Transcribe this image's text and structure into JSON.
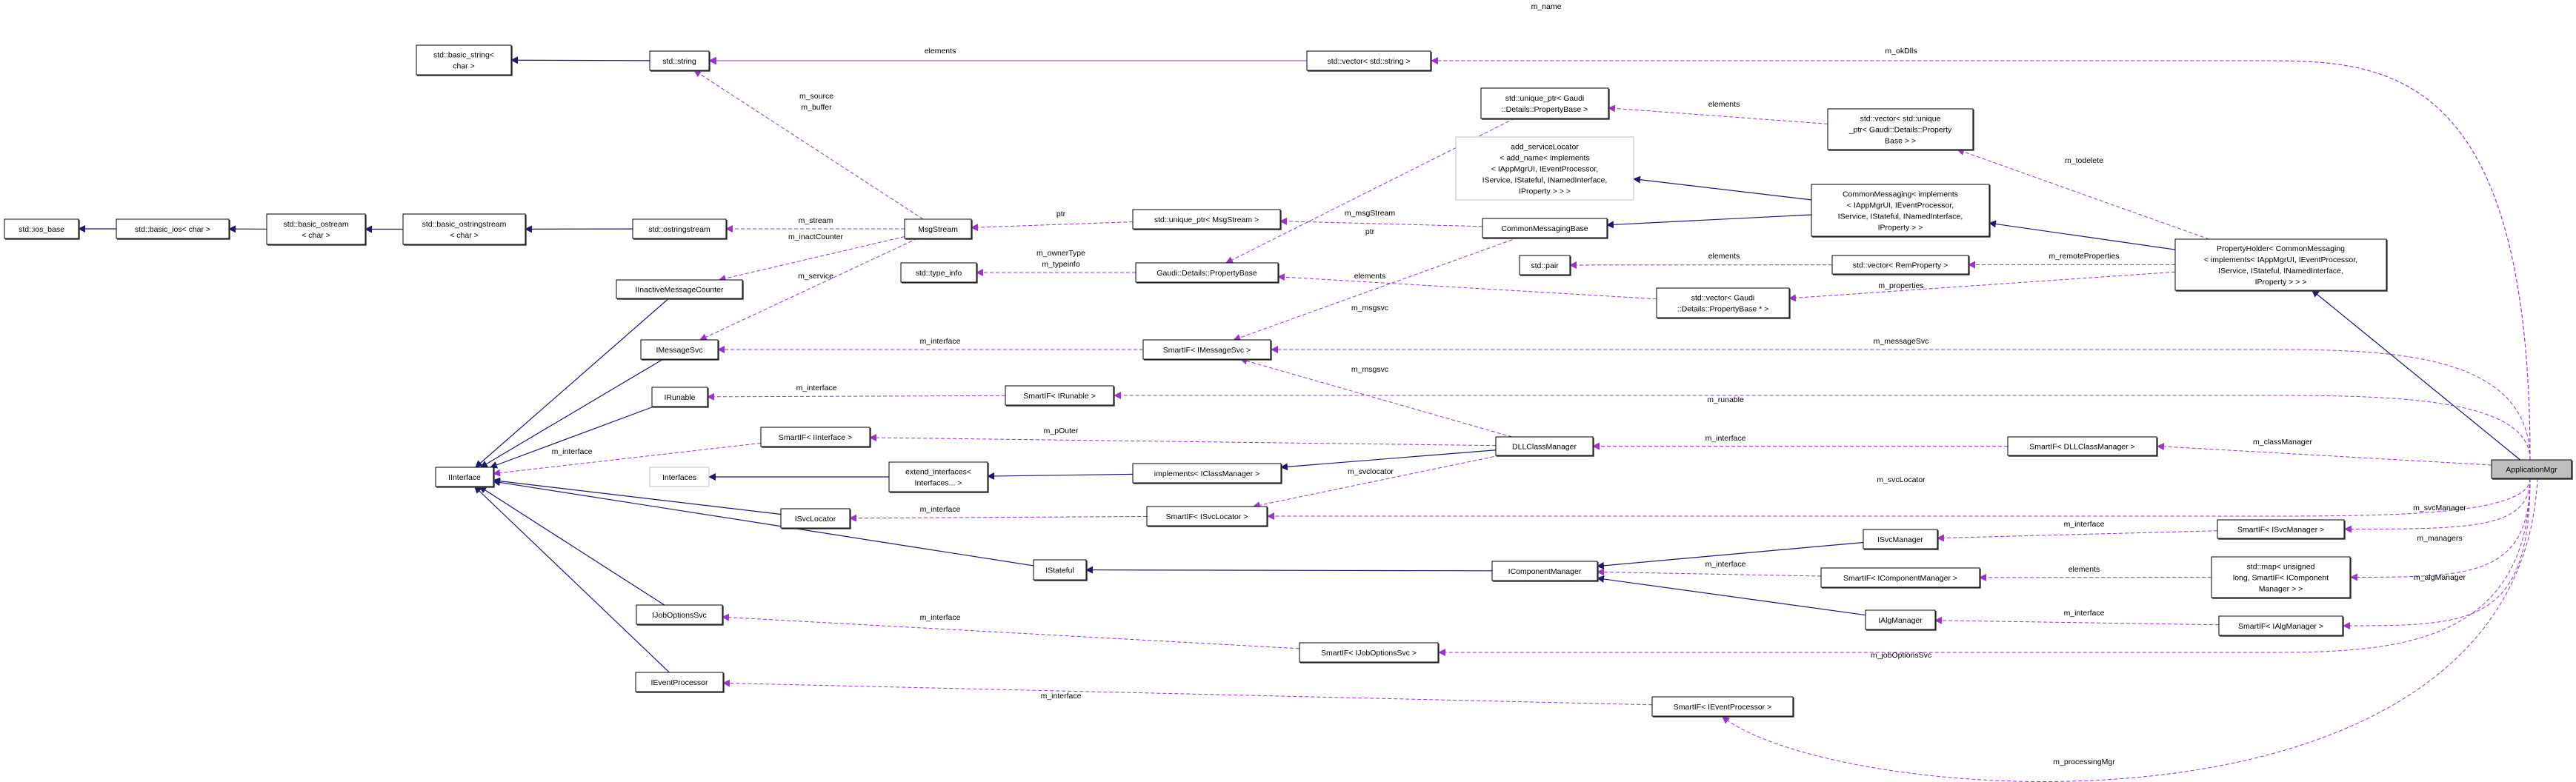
{
  "colors": {
    "inherit": "#191970",
    "usage": "#9a32cd",
    "focus_fill": "#bfbfbf"
  },
  "nodes": {
    "basic_string": {
      "label": [
        "std::basic_string<",
        "char >"
      ]
    },
    "string": {
      "label": [
        "std::string"
      ]
    },
    "ios_base": {
      "label": [
        "std::ios_base"
      ]
    },
    "basic_ios": {
      "label": [
        "std::basic_ios< char >"
      ]
    },
    "basic_ostream": {
      "label": [
        "std::basic_ostream",
        "< char >"
      ]
    },
    "basic_ostringstream": {
      "label": [
        "std::basic_ostringstream",
        "< char >"
      ]
    },
    "ostringstream": {
      "label": [
        "std::ostringstream"
      ]
    },
    "inact": {
      "label": [
        "IInactiveMessageCounter"
      ]
    },
    "imsgsvc": {
      "label": [
        "IMessageSvc"
      ]
    },
    "irun": {
      "label": [
        "IRunable"
      ]
    },
    "siII": {
      "label": [
        "SmartIF< IInterface >"
      ]
    },
    "iinterface": {
      "label": [
        "IInterface"
      ]
    },
    "interfaces": {
      "label": [
        "Interfaces"
      ],
      "style": "grey"
    },
    "isl": {
      "label": [
        "ISvcLocator"
      ]
    },
    "ijo": {
      "label": [
        "IJobOptionsSvc"
      ]
    },
    "iep": {
      "label": [
        "IEventProcessor"
      ]
    },
    "vecstr": {
      "label": [
        "std::vector< std::string >"
      ]
    },
    "uptrPB": {
      "label": [
        "std::unique_ptr< Gaudi",
        "::Details::PropertyBase >"
      ]
    },
    "addsl": {
      "label": [
        "add_serviceLocator",
        "< add_name< implements",
        "< IAppMgrUI, IEventProcessor,",
        "IService, IStateful, INamedInterface,",
        "IProperty > > >"
      ],
      "style": "grey"
    },
    "msgstream": {
      "label": [
        "MsgStream"
      ]
    },
    "uptrMsg": {
      "label": [
        "std::unique_ptr< MsgStream >"
      ]
    },
    "cmb": {
      "label": [
        "CommonMessagingBase"
      ]
    },
    "typeinfo": {
      "label": [
        "std::type_info"
      ]
    },
    "PB": {
      "label": [
        "Gaudi::Details::PropertyBase"
      ]
    },
    "pair": {
      "label": [
        "std::pair"
      ]
    },
    "vecPBp": {
      "label": [
        "std::vector< Gaudi",
        "::Details::PropertyBase * >"
      ]
    },
    "siMsg": {
      "label": [
        "SmartIF< IMessageSvc >"
      ]
    },
    "vecUptr": {
      "label": [
        "std::vector< std::unique",
        "_ptr< Gaudi::Details::Property",
        "Base > >"
      ]
    },
    "cm": {
      "label": [
        "CommonMessaging< implements",
        "< IAppMgrUI, IEventProcessor,",
        "IService, IStateful, INamedInterface,",
        "IProperty > >"
      ]
    },
    "ph": {
      "label": [
        "PropertyHolder< CommonMessaging",
        "< implements< IAppMgrUI, IEventProcessor,",
        "IService, IStateful, INamedInterface,",
        "IProperty > > >"
      ]
    },
    "vecRem": {
      "label": [
        "std::vector< RemProperty >"
      ]
    },
    "siRun": {
      "label": [
        "SmartIF< IRunable >"
      ]
    },
    "dll": {
      "label": [
        "DLLClassManager"
      ]
    },
    "extif": {
      "label": [
        "extend_interfaces<",
        "Interfaces... >"
      ]
    },
    "implCM": {
      "label": [
        "implements< IClassManager >"
      ]
    },
    "siSL": {
      "label": [
        "SmartIF< ISvcLocator >"
      ]
    },
    "istateful": {
      "label": [
        "IStateful"
      ]
    },
    "icm": {
      "label": [
        "IComponentManager"
      ]
    },
    "siJO": {
      "label": [
        "SmartIF< IJobOptionsSvc >"
      ]
    },
    "siEP": {
      "label": [
        "SmartIF< IEventProcessor >"
      ]
    },
    "siDLL": {
      "label": [
        "SmartIF< DLLClassManager >"
      ]
    },
    "app": {
      "label": [
        "ApplicationMgr"
      ],
      "style": "focus"
    },
    "ism": {
      "label": [
        "ISvcManager"
      ]
    },
    "siSM": {
      "label": [
        "SmartIF< ISvcManager >"
      ]
    },
    "siCM": {
      "label": [
        "SmartIF< IComponentManager >"
      ]
    },
    "map": {
      "label": [
        "std::map< unsigned",
        "long, SmartIF< IComponent",
        "Manager > >"
      ]
    },
    "iam": {
      "label": [
        "IAlgManager"
      ]
    },
    "siAM": {
      "label": [
        "SmartIF< IAlgManager >"
      ]
    }
  },
  "inherits": [
    [
      "string",
      "basic_string"
    ],
    [
      "basic_ios",
      "ios_base"
    ],
    [
      "basic_ostream",
      "basic_ios"
    ],
    [
      "basic_ostringstream",
      "basic_ostream"
    ],
    [
      "ostringstream",
      "basic_ostringstream"
    ],
    [
      "inact",
      "iinterface"
    ],
    [
      "imsgsvc",
      "iinterface"
    ],
    [
      "irun",
      "iinterface"
    ],
    [
      "isl",
      "iinterface"
    ],
    [
      "istateful",
      "iinterface"
    ],
    [
      "ijo",
      "iinterface"
    ],
    [
      "iep",
      "iinterface"
    ],
    [
      "extif",
      "interfaces"
    ],
    [
      "implCM",
      "extif"
    ],
    [
      "dll",
      "implCM"
    ],
    [
      "icm",
      "istateful"
    ],
    [
      "ism",
      "icm"
    ],
    [
      "iam",
      "icm"
    ],
    [
      "cm",
      "addsl"
    ],
    [
      "cm",
      "cmb"
    ],
    [
      "ph",
      "cm"
    ],
    [
      "app",
      "ph"
    ]
  ],
  "edges": [
    {
      "from": "app",
      "to": "string",
      "label": [
        "m_name"
      ]
    },
    {
      "from": "app",
      "to": "vecstr",
      "label": [
        "m_okDlls"
      ]
    },
    {
      "from": "vecstr",
      "to": "string",
      "label": [
        "elements"
      ]
    },
    {
      "from": "msgstream",
      "to": "string",
      "label": [
        "m_source",
        "m_buffer"
      ]
    },
    {
      "from": "msgstream",
      "to": "ostringstream",
      "label": [
        "m_stream"
      ]
    },
    {
      "from": "msgstream",
      "to": "inact",
      "label": [
        "m_inactCounter"
      ]
    },
    {
      "from": "msgstream",
      "to": "imsgsvc",
      "label": [
        "m_service"
      ]
    },
    {
      "from": "uptrMsg",
      "to": "msgstream",
      "label": [
        "ptr"
      ]
    },
    {
      "from": "cmb",
      "to": "uptrMsg",
      "label": [
        "m_msgStream"
      ]
    },
    {
      "from": "uptrPB",
      "to": "PB",
      "label": [
        "ptr"
      ]
    },
    {
      "from": "PB",
      "to": "typeinfo",
      "label": [
        "m_ownerType",
        "m_typeinfo"
      ]
    },
    {
      "from": "vecPBp",
      "to": "PB",
      "label": [
        "elements"
      ]
    },
    {
      "from": "cmb",
      "to": "siMsg",
      "label": [
        "m_msgsvc"
      ]
    },
    {
      "from": "dll",
      "to": "siMsg",
      "label": [
        "m_msgsvc"
      ]
    },
    {
      "from": "siMsg",
      "to": "imsgsvc",
      "label": [
        "m_interface"
      ]
    },
    {
      "from": "vecUptr",
      "to": "uptrPB",
      "label": [
        "elements"
      ]
    },
    {
      "from": "ph",
      "to": "vecUptr",
      "label": [
        "m_todelete"
      ]
    },
    {
      "from": "vecRem",
      "to": "pair",
      "label": [
        "elements"
      ]
    },
    {
      "from": "ph",
      "to": "vecRem",
      "label": [
        "m_remoteProperties"
      ]
    },
    {
      "from": "ph",
      "to": "vecPBp",
      "label": [
        "m_properties"
      ]
    },
    {
      "from": "app",
      "to": "siMsg",
      "label": [
        "m_messageSvc"
      ]
    },
    {
      "from": "siRun",
      "to": "irun",
      "label": [
        "m_interface"
      ]
    },
    {
      "from": "app",
      "to": "siRun",
      "label": [
        "m_runable"
      ]
    },
    {
      "from": "siII",
      "to": "iinterface",
      "label": [
        "m_interface"
      ]
    },
    {
      "from": "dll",
      "to": "siII",
      "label": [
        "m_pOuter"
      ]
    },
    {
      "from": "siDLL",
      "to": "dll",
      "label": [
        "m_interface"
      ]
    },
    {
      "from": "app",
      "to": "siDLL",
      "label": [
        "m_classManager"
      ]
    },
    {
      "from": "siSL",
      "to": "isl",
      "label": [
        "m_interface"
      ]
    },
    {
      "from": "dll",
      "to": "siSL",
      "label": [
        "m_svclocator"
      ]
    },
    {
      "from": "app",
      "to": "siSL",
      "label": [
        "m_svcLocator"
      ]
    },
    {
      "from": "siSM",
      "to": "ism",
      "label": [
        "m_interface"
      ]
    },
    {
      "from": "app",
      "to": "siSM",
      "label": [
        "m_svcManager"
      ]
    },
    {
      "from": "siCM",
      "to": "icm",
      "label": [
        "m_interface"
      ]
    },
    {
      "from": "map",
      "to": "siCM",
      "label": [
        "elements"
      ]
    },
    {
      "from": "app",
      "to": "map",
      "label": [
        "m_managers"
      ]
    },
    {
      "from": "siAM",
      "to": "iam",
      "label": [
        "m_interface"
      ]
    },
    {
      "from": "app",
      "to": "siAM",
      "label": [
        "m_algManager"
      ]
    },
    {
      "from": "siJO",
      "to": "ijo",
      "label": [
        "m_interface"
      ]
    },
    {
      "from": "app",
      "to": "siJO",
      "label": [
        "m_jobOptionsSvc"
      ]
    },
    {
      "from": "siEP",
      "to": "iep",
      "label": [
        "m_interface"
      ]
    },
    {
      "from": "app",
      "to": "siEP",
      "label": [
        "m_processingMgr"
      ]
    }
  ]
}
